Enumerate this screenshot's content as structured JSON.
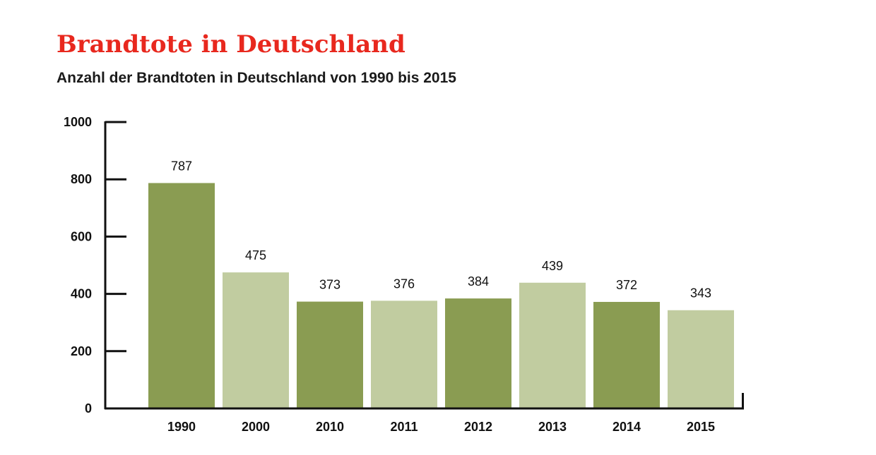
{
  "chart_data": {
    "type": "bar",
    "title": "Brandtote in Deutschland",
    "subtitle": "Anzahl der Brandtoten in Deutschland von 1990 bis 2015",
    "categories": [
      "1990",
      "2000",
      "2010",
      "2011",
      "2012",
      "2013",
      "2014",
      "2015"
    ],
    "values": [
      787,
      475,
      373,
      376,
      384,
      439,
      372,
      343
    ],
    "ylim": [
      0,
      1000
    ],
    "yticks": [
      0,
      200,
      400,
      600,
      800,
      1000
    ],
    "xlabel": "",
    "ylabel": "",
    "grid": false,
    "colors": [
      "#8a9c52",
      "#c1cca0"
    ]
  }
}
